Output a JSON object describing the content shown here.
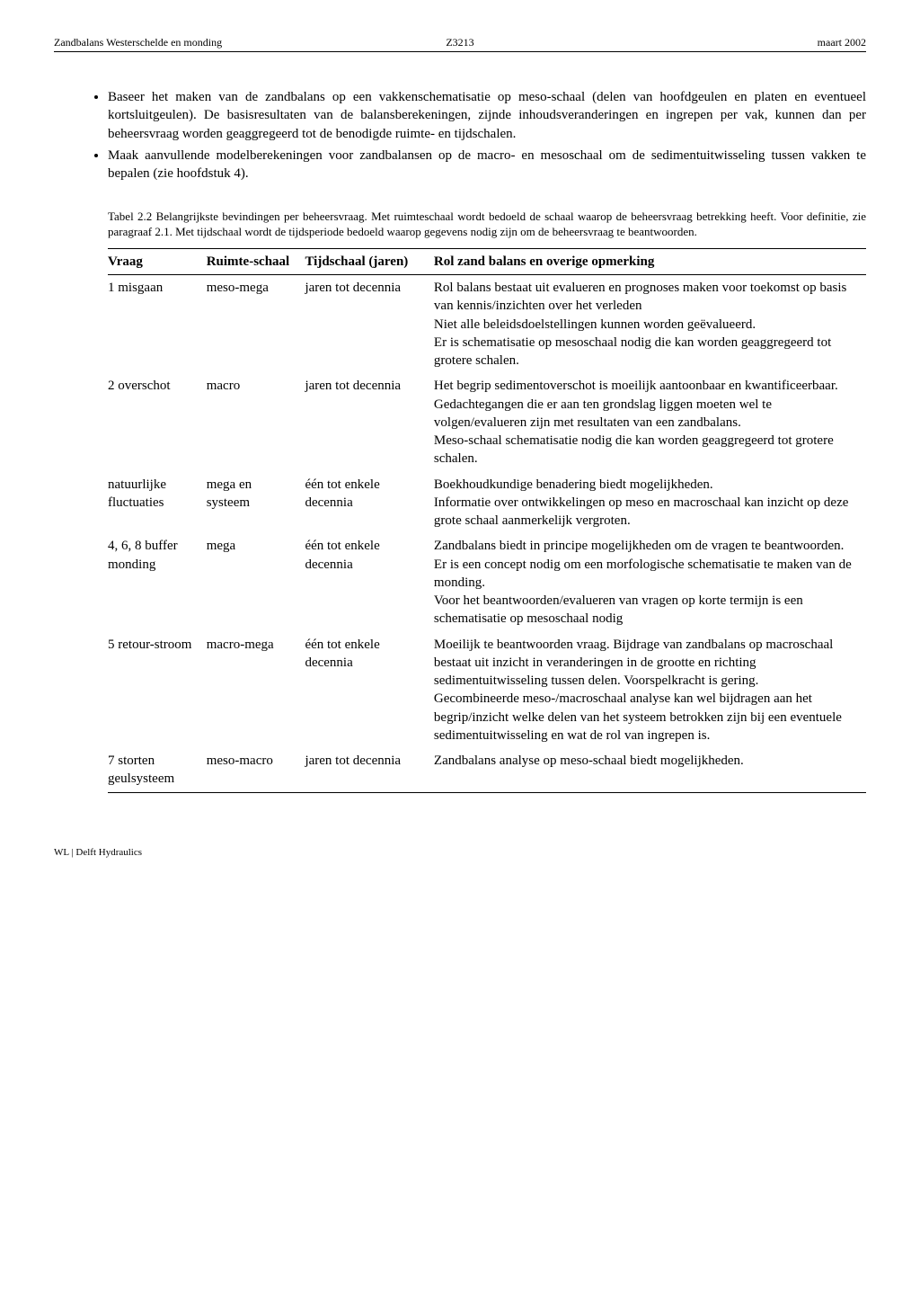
{
  "header": {
    "left": "Zandbalans Westerschelde en monding",
    "center": "Z3213",
    "right": "maart 2002"
  },
  "bullets": [
    "Baseer het maken van de zandbalans op een vakkenschematisatie op meso-schaal (delen van hoofdgeulen en platen en eventueel kortsluitgeulen). De basisresultaten van de balansberekeningen, zijnde inhoudsveranderingen en ingrepen per vak, kunnen dan per beheersvraag worden geaggregeerd tot de benodigde ruimte- en tijdschalen.",
    "Maak aanvullende modelberekeningen voor zandbalansen op de macro- en mesoschaal om de sedimentuitwisseling tussen vakken te bepalen (zie hoofdstuk 4)."
  ],
  "caption": "Tabel 2.2 Belangrijkste bevindingen per beheersvraag. Met ruimteschaal wordt bedoeld de schaal waarop de beheersvraag betrekking heeft. Voor definitie, zie paragraaf 2.1. Met tijdschaal wordt de tijdsperiode bedoeld waarop gegevens nodig zijn om de beheersvraag te beantwoorden.",
  "table": {
    "columns": [
      "Vraag",
      "Ruimte-schaal",
      "Tijdschaal (jaren)",
      "Rol zand balans en overige opmerking"
    ],
    "rows": [
      {
        "vraag": "1 misgaan",
        "ruimte": "meso-mega",
        "tijd": "jaren tot decennia",
        "opm": "Rol balans bestaat uit evalueren en prognoses maken voor toekomst op basis van kennis/inzichten over het verleden\nNiet alle beleidsdoelstellingen kunnen worden geëvalueerd.\nEr is schematisatie op mesoschaal nodig die kan worden geaggregeerd tot grotere schalen."
      },
      {
        "vraag": "2 overschot",
        "ruimte": "macro",
        "tijd": "jaren tot decennia",
        "opm": "Het begrip sedimentoverschot is moeilijk aantoonbaar en kwantificeerbaar. Gedachtegangen die er aan ten grondslag liggen moeten wel te volgen/evalueren zijn met resultaten van een zandbalans.\nMeso-schaal schematisatie nodig die kan worden geaggregeerd tot grotere schalen."
      },
      {
        "vraag": "natuurlijke fluctuaties",
        "ruimte": "mega en systeem",
        "tijd": "één tot enkele decennia",
        "opm": "Boekhoudkundige benadering biedt mogelijkheden.\nInformatie over ontwikkelingen op meso en macroschaal kan inzicht op deze grote schaal aanmerkelijk vergroten."
      },
      {
        "vraag": "4, 6, 8 buffer monding",
        "ruimte": "mega",
        "tijd": "één tot enkele decennia",
        "opm": "Zandbalans biedt in principe mogelijkheden om de vragen te beantwoorden.\nEr is een concept nodig om een morfologische schematisatie te maken van de monding.\nVoor het beantwoorden/evalueren van vragen op korte termijn is een schematisatie op mesoschaal nodig"
      },
      {
        "vraag": "5 retour-stroom",
        "ruimte": "macro-mega",
        "tijd": "één tot enkele decennia",
        "opm": "Moeilijk te beantwoorden vraag. Bijdrage van zandbalans op macroschaal bestaat uit inzicht in veranderingen in de grootte en richting sedimentuitwisseling tussen delen. Voorspelkracht is gering.\nGecombineerde meso-/macroschaal analyse kan wel bijdragen aan het begrip/inzicht welke delen van het systeem betrokken zijn bij een eventuele sedimentuitwisseling en wat de rol van ingrepen is."
      },
      {
        "vraag": "7 storten geulsysteem",
        "ruimte": "meso-macro",
        "tijd": "jaren tot decennia",
        "opm": "Zandbalans analyse op meso-schaal biedt mogelijkheden."
      }
    ]
  },
  "footer": "WL | Delft Hydraulics"
}
